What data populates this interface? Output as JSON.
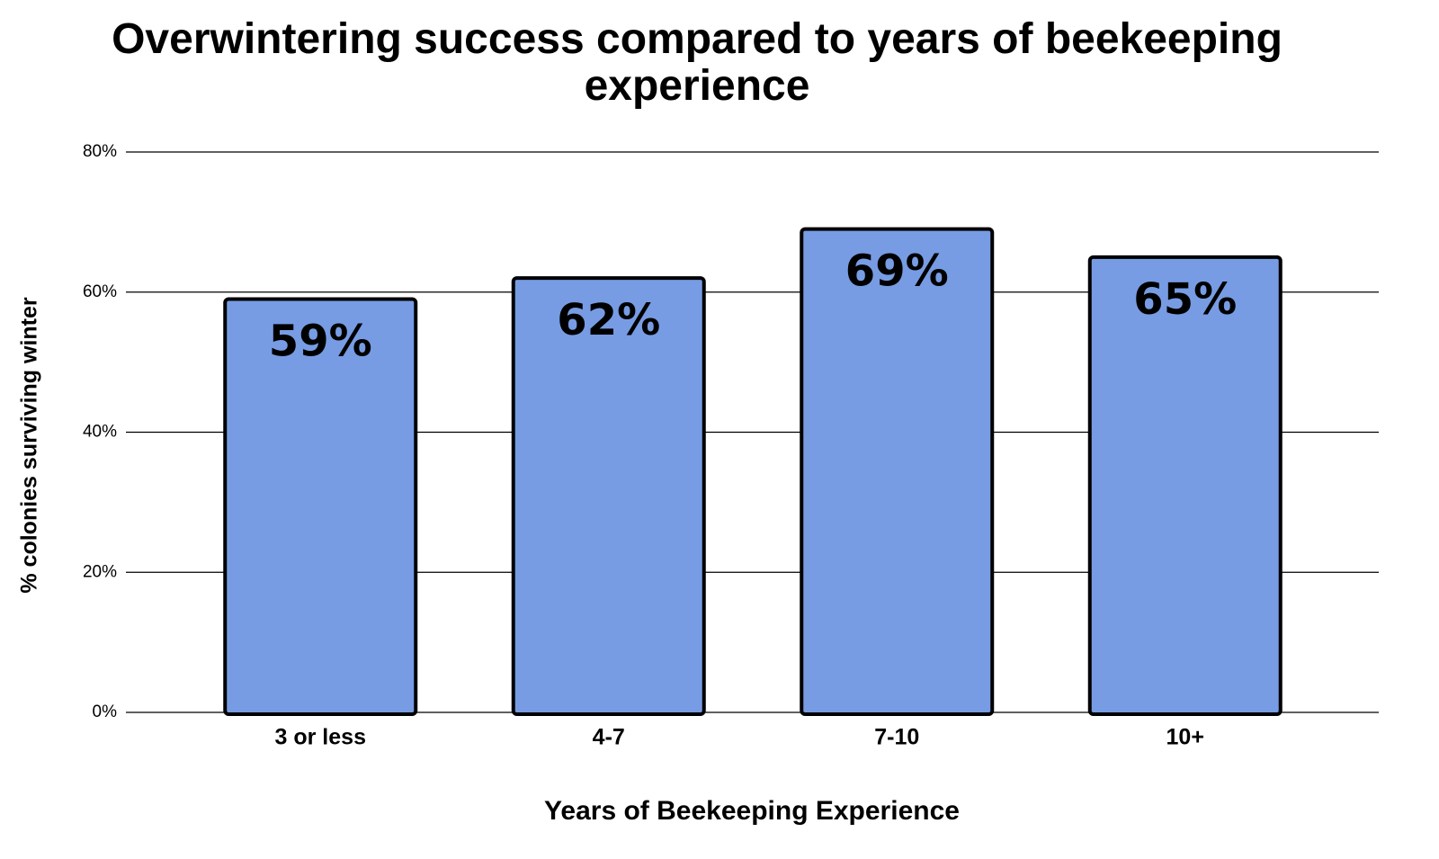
{
  "chart_data": {
    "type": "bar",
    "title": "Overwintering success compared to years of beekeeping experience",
    "x_label": "Years of Beekeeping Experience",
    "y_label": "% colonies surviving winter",
    "categories": [
      "3 or less",
      "4-7",
      "7-10",
      "10+"
    ],
    "values": [
      59,
      62,
      69,
      65
    ],
    "value_labels": [
      "59%",
      "62%",
      "69%",
      "65%"
    ],
    "color": "#779ce4",
    "ylim": [
      0,
      80
    ],
    "yticks": [
      {
        "value": 0,
        "label": "0%"
      },
      {
        "value": 20,
        "label": "20%"
      },
      {
        "value": 40,
        "label": "40%"
      },
      {
        "value": 60,
        "label": "60%"
      },
      {
        "value": 80,
        "label": "80%"
      }
    ],
    "grid": true
  }
}
